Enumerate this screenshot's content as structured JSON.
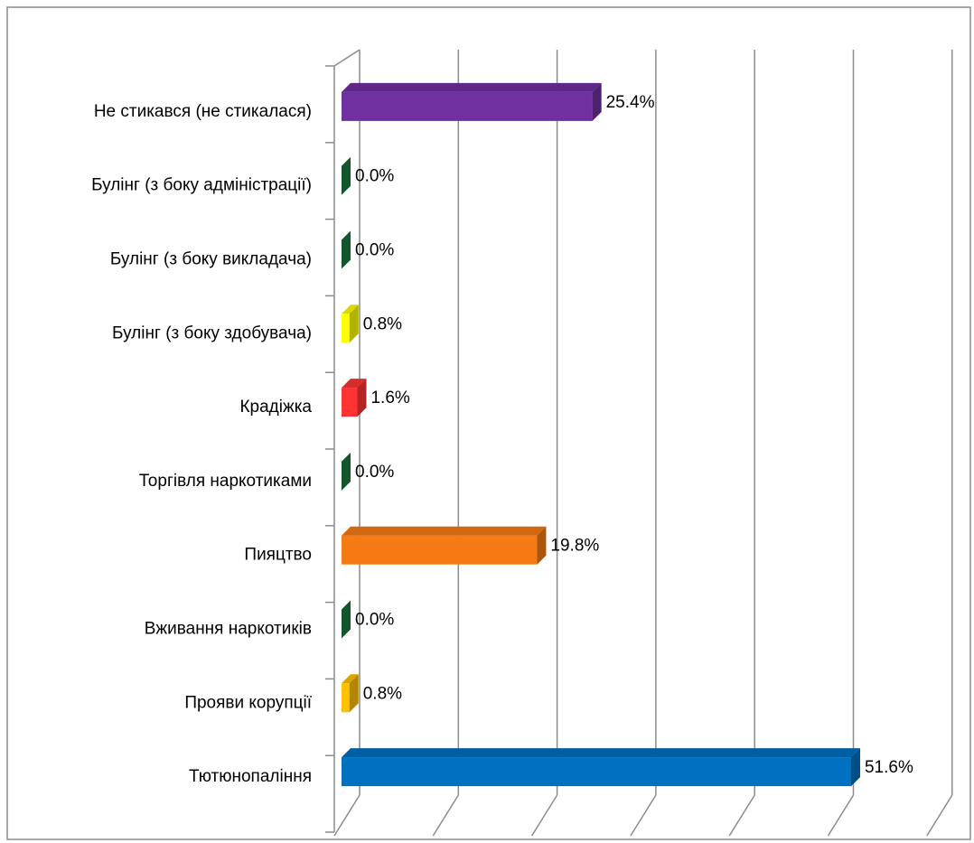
{
  "chart_data": {
    "type": "bar3d",
    "categories": [
      "Не стикався (не стикалася)",
      "Булінг (з боку адміністрації)",
      "Булінг (з боку викладача)",
      "Булінг (з боку здобувача)",
      "Крадіжка",
      "Торгівля наркотиками",
      "Пияцтво",
      "Вживання наркотиків",
      "Прояви корупції",
      "Тютюнопаління"
    ],
    "values": [
      25.4,
      0,
      0,
      0.8,
      1.6,
      0,
      19.8,
      0,
      0.8,
      51.6
    ],
    "value_labels": [
      "25.4%",
      "0.0%",
      "0.0%",
      "0.8%",
      "1.6%",
      "0.0%",
      "19.8%",
      "0.0%",
      "0.8%",
      "51.6%"
    ],
    "colors": [
      "#7030a0",
      "#1e7b3f",
      "#1e7b3f",
      "#ffff00",
      "#ff3333",
      "#1e7b3f",
      "#f57a14",
      "#1e7b3f",
      "#ffc000",
      "#0070c0"
    ],
    "xlim": [
      0,
      60
    ],
    "xticks": [
      0,
      10,
      20,
      30,
      40,
      50,
      60
    ],
    "grid": true
  }
}
